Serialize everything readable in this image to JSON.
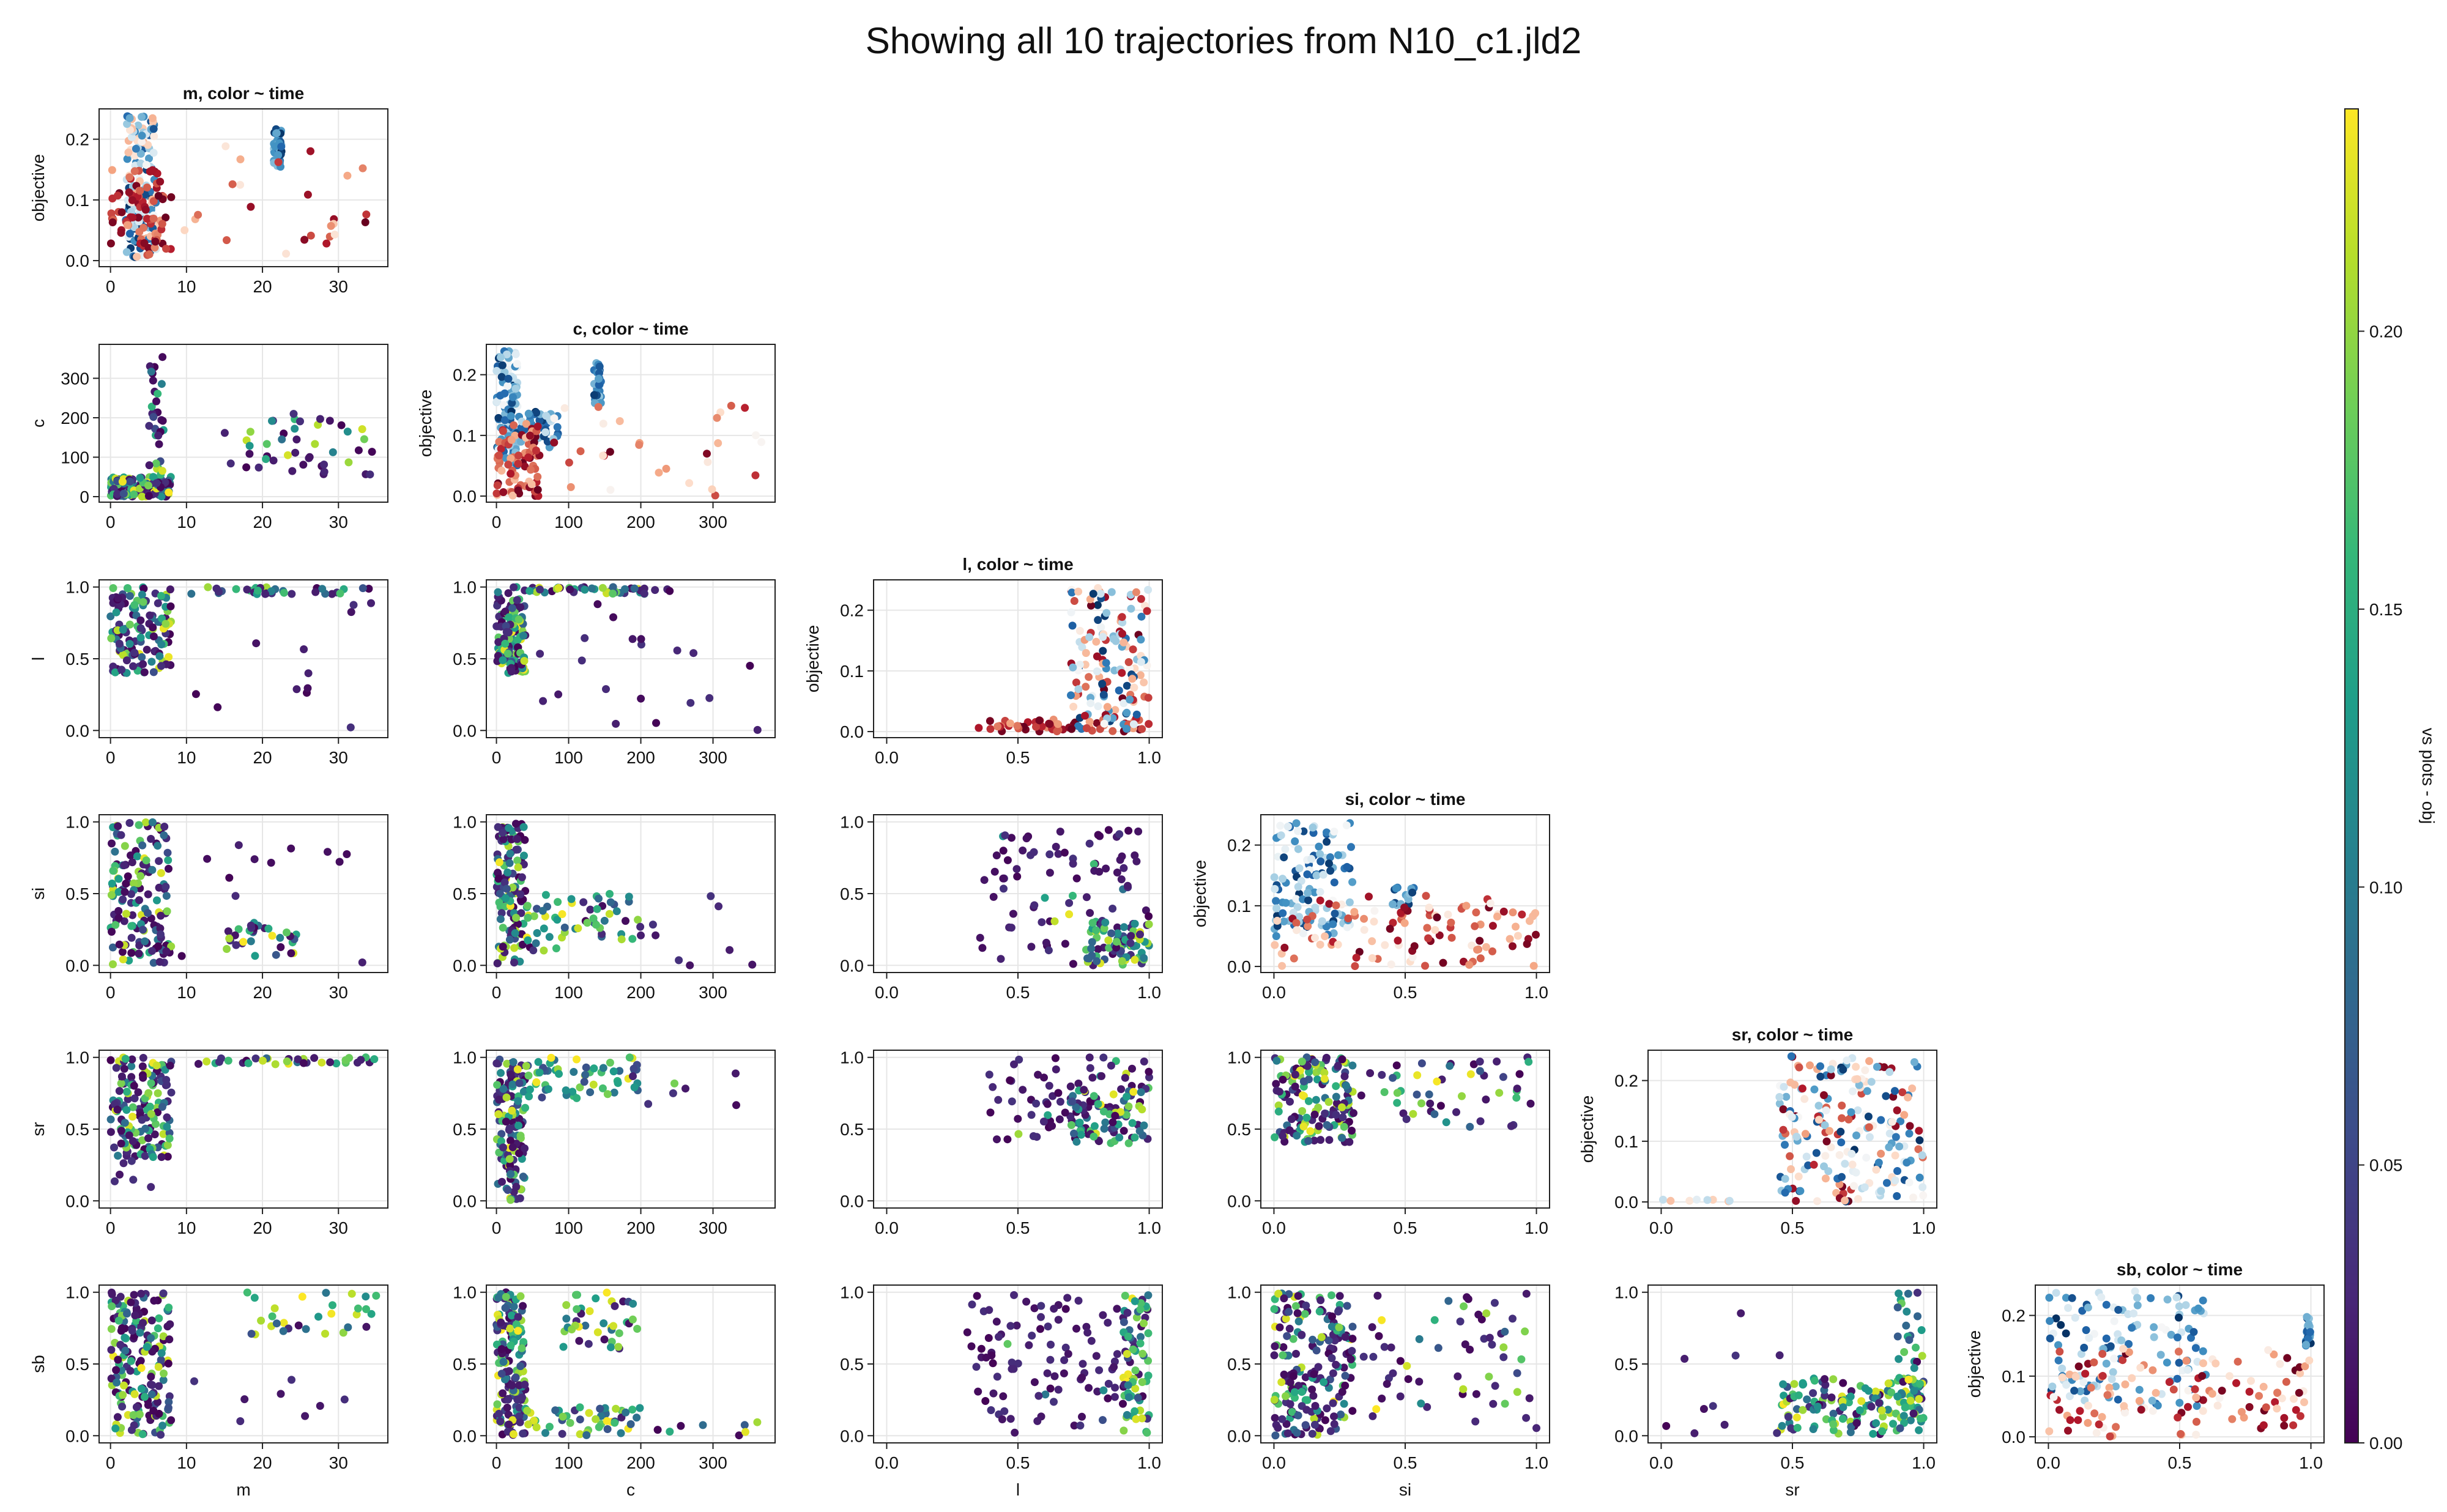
{
  "title": "Showing all 10 trajectories from N10_c1.jld2",
  "colorbar": {
    "label": "vs plots - obj",
    "colormap": "viridis",
    "range": [
      0.0,
      0.24
    ],
    "ticks": [
      "0.00",
      "0.05",
      "0.10",
      "0.15",
      "0.20"
    ],
    "tick_values": [
      0.0,
      0.05,
      0.1,
      0.15,
      0.2
    ]
  },
  "time_colormap": "RdBu (red = early, blue = late)",
  "variables": [
    "m",
    "c",
    "l",
    "si",
    "sr",
    "sb"
  ],
  "axes": {
    "m": {
      "range": [
        -1.5,
        36.5
      ],
      "ticks": [
        0,
        10,
        20,
        30
      ],
      "tick_labels": [
        "0",
        "10",
        "20",
        "30"
      ]
    },
    "c": {
      "range": [
        -14,
        386
      ],
      "ticks": [
        0,
        100,
        200,
        300
      ],
      "tick_labels": [
        "0",
        "100",
        "200",
        "300"
      ]
    },
    "l": {
      "range": [
        -0.05,
        1.05
      ],
      "ticks": [
        0,
        0.5,
        1
      ],
      "tick_labels": [
        "0.0",
        "0.5",
        "1.0"
      ]
    },
    "si": {
      "range": [
        -0.05,
        1.05
      ],
      "ticks": [
        0,
        0.5,
        1
      ],
      "tick_labels": [
        "0.0",
        "0.5",
        "1.0"
      ]
    },
    "sr": {
      "range": [
        -0.05,
        1.05
      ],
      "ticks": [
        0,
        0.5,
        1
      ],
      "tick_labels": [
        "0.0",
        "0.5",
        "1.0"
      ]
    },
    "sb": {
      "range": [
        -0.05,
        1.05
      ],
      "ticks": [
        0,
        0.5,
        1
      ],
      "tick_labels": [
        "0.0",
        "0.5",
        "1.0"
      ]
    },
    "c_y": {
      "range": [
        -14,
        386
      ],
      "ticks": [
        0,
        100,
        200,
        300
      ],
      "tick_labels": [
        "0",
        "100",
        "200",
        "300"
      ]
    },
    "objective": {
      "range": [
        -0.01,
        0.25
      ],
      "ticks": [
        0,
        0.1,
        0.2
      ],
      "tick_labels": [
        "0.0",
        "0.1",
        "0.2"
      ]
    }
  },
  "diagonal_titles": [
    "m, color ~ time",
    "c, color ~ time",
    "l, color ~ time",
    "si, color ~ time",
    "sr, color ~ time",
    "sb, color ~ time"
  ],
  "objective_label": "objective",
  "chart_data": [
    {
      "type": "scatter",
      "title": "m, color ~ time",
      "xlabel": "",
      "ylabel": "objective",
      "x_var": "m",
      "y_var": "objective",
      "color": "time",
      "clusters": [
        {
          "x": [
            2,
            6
          ],
          "y": [
            0.0,
            0.24
          ],
          "n": 150,
          "t": [
            0.3,
            1.0
          ]
        },
        {
          "x": [
            0,
            8
          ],
          "y": [
            0.0,
            0.15
          ],
          "n": 80,
          "t": [
            0.0,
            0.3
          ]
        },
        {
          "x": [
            21.5,
            22.5
          ],
          "y": [
            0.15,
            0.22
          ],
          "n": 40,
          "t": [
            0.7,
            1.0
          ]
        },
        {
          "x": [
            8,
            34
          ],
          "y": [
            0.0,
            0.19
          ],
          "n": 25,
          "t": [
            0.0,
            0.45
          ]
        }
      ]
    },
    {
      "type": "scatter",
      "title": "",
      "xlabel": "",
      "ylabel": "c",
      "x_var": "m",
      "y_var": "c",
      "color": "objective",
      "clusters": [
        {
          "x": [
            0,
            8
          ],
          "y": [
            0,
            50
          ],
          "n": 160
        },
        {
          "x": [
            5,
            7
          ],
          "y": [
            0,
            375
          ],
          "n": 35,
          "high": 0.5
        },
        {
          "x": [
            15,
            35
          ],
          "y": [
            50,
            215
          ],
          "n": 45,
          "high": 0.35
        }
      ]
    },
    {
      "type": "scatter",
      "title": "c, color ~ time",
      "xlabel": "",
      "ylabel": "objective",
      "x_var": "c",
      "y_var": "objective",
      "color": "time",
      "clusters": [
        {
          "x": [
            0,
            30
          ],
          "y": [
            0.05,
            0.24
          ],
          "n": 110,
          "t": [
            0.5,
            1.0
          ]
        },
        {
          "x": [
            30,
            90
          ],
          "y": [
            0.08,
            0.14
          ],
          "n": 40,
          "t": [
            0.6,
            1.0
          ]
        },
        {
          "x": [
            135,
            145
          ],
          "y": [
            0.15,
            0.22
          ],
          "n": 30,
          "t": [
            0.7,
            1.0
          ]
        },
        {
          "x": [
            0,
            60
          ],
          "y": [
            0.0,
            0.12
          ],
          "n": 80,
          "t": [
            0.0,
            0.35
          ]
        },
        {
          "x": [
            60,
            375
          ],
          "y": [
            0.0,
            0.15
          ],
          "n": 30,
          "t": [
            0.0,
            0.5
          ]
        }
      ]
    },
    {
      "type": "scatter",
      "title": "",
      "xlabel": "",
      "ylabel": "l",
      "x_var": "m",
      "y_var": "l",
      "color": "objective",
      "clusters": [
        {
          "x": [
            0,
            8
          ],
          "y": [
            0.4,
            1.0
          ],
          "n": 130
        },
        {
          "x": [
            10,
            35
          ],
          "y": [
            0.95,
            1.0
          ],
          "n": 35,
          "high": 0.5
        },
        {
          "x": [
            8,
            35
          ],
          "y": [
            0.0,
            0.9
          ],
          "n": 12,
          "high": 0.05
        }
      ]
    },
    {
      "type": "scatter",
      "title": "",
      "xlabel": "",
      "ylabel": "",
      "x_var": "c",
      "y_var": "l",
      "color": "objective",
      "clusters": [
        {
          "x": [
            0,
            40
          ],
          "y": [
            0.4,
            1.0
          ],
          "n": 130
        },
        {
          "x": [
            40,
            240
          ],
          "y": [
            0.95,
            1.0
          ],
          "n": 45,
          "high": 0.6
        },
        {
          "x": [
            40,
            375
          ],
          "y": [
            0.0,
            0.9
          ],
          "n": 20,
          "high": 0.05
        }
      ]
    },
    {
      "type": "scatter",
      "title": "l, color ~ time",
      "xlabel": "",
      "ylabel": "objective",
      "x_var": "l",
      "y_var": "objective",
      "color": "time",
      "clusters": [
        {
          "x": [
            0.35,
            1.0
          ],
          "y": [
            0.0,
            0.02
          ],
          "n": 60,
          "t": [
            0.0,
            0.3
          ]
        },
        {
          "x": [
            0.7,
            1.0
          ],
          "y": [
            0.0,
            0.24
          ],
          "n": 150,
          "t": [
            0.0,
            1.0
          ]
        }
      ]
    },
    {
      "type": "scatter",
      "title": "",
      "xlabel": "",
      "ylabel": "si",
      "x_var": "m",
      "y_var": "si",
      "color": "objective",
      "clusters": [
        {
          "x": [
            0,
            8
          ],
          "y": [
            0.0,
            1.0
          ],
          "n": 150
        },
        {
          "x": [
            15,
            25
          ],
          "y": [
            0.05,
            0.3
          ],
          "n": 30,
          "high": 0.8
        },
        {
          "x": [
            8,
            35
          ],
          "y": [
            0.0,
            0.85
          ],
          "n": 15,
          "high": 0.05
        }
      ]
    },
    {
      "type": "scatter",
      "title": "",
      "xlabel": "",
      "ylabel": "",
      "x_var": "c",
      "y_var": "si",
      "color": "objective",
      "clusters": [
        {
          "x": [
            0,
            40
          ],
          "y": [
            0.0,
            1.0
          ],
          "n": 130
        },
        {
          "x": [
            40,
            200
          ],
          "y": [
            0.1,
            0.5
          ],
          "n": 60,
          "high": 0.8
        },
        {
          "x": [
            200,
            375
          ],
          "y": [
            0.0,
            0.5
          ],
          "n": 8,
          "high": 0.3
        }
      ]
    },
    {
      "type": "scatter",
      "title": "",
      "xlabel": "",
      "ylabel": "",
      "x_var": "l",
      "y_var": "si",
      "color": "objective",
      "clusters": [
        {
          "x": [
            0.35,
            1.0
          ],
          "y": [
            0.0,
            0.95
          ],
          "n": 90,
          "high": 0.1
        },
        {
          "x": [
            0.75,
            1.0
          ],
          "y": [
            0.0,
            0.3
          ],
          "n": 70,
          "high": 0.8
        }
      ]
    },
    {
      "type": "scatter",
      "title": "si, color ~ time",
      "xlabel": "",
      "ylabel": "objective",
      "x_var": "si",
      "y_var": "objective",
      "color": "time",
      "clusters": [
        {
          "x": [
            0.0,
            0.3
          ],
          "y": [
            0.05,
            0.24
          ],
          "n": 120,
          "t": [
            0.5,
            1.0
          ]
        },
        {
          "x": [
            0.45,
            0.55
          ],
          "y": [
            0.1,
            0.13
          ],
          "n": 15,
          "t": [
            0.7,
            1.0
          ]
        },
        {
          "x": [
            0.0,
            1.0
          ],
          "y": [
            0.0,
            0.12
          ],
          "n": 110,
          "t": [
            0.0,
            0.5
          ]
        }
      ]
    },
    {
      "type": "scatter",
      "title": "",
      "xlabel": "",
      "ylabel": "sr",
      "x_var": "m",
      "y_var": "sr",
      "color": "objective",
      "clusters": [
        {
          "x": [
            0,
            8
          ],
          "y": [
            0.3,
            1.0
          ],
          "n": 150
        },
        {
          "x": [
            10,
            35
          ],
          "y": [
            0.95,
            1.0
          ],
          "n": 35,
          "high": 0.6
        },
        {
          "x": [
            0,
            8
          ],
          "y": [
            0.0,
            0.3
          ],
          "n": 6,
          "high": 0.05
        }
      ]
    },
    {
      "type": "scatter",
      "title": "",
      "xlabel": "",
      "ylabel": "",
      "x_var": "c",
      "y_var": "sr",
      "color": "objective",
      "clusters": [
        {
          "x": [
            0,
            40
          ],
          "y": [
            0.0,
            1.0
          ],
          "n": 130
        },
        {
          "x": [
            40,
            200
          ],
          "y": [
            0.7,
            1.0
          ],
          "n": 60,
          "high": 0.9
        },
        {
          "x": [
            200,
            375
          ],
          "y": [
            0.6,
            0.9
          ],
          "n": 6,
          "high": 0.3
        }
      ]
    },
    {
      "type": "scatter",
      "title": "",
      "xlabel": "",
      "ylabel": "",
      "x_var": "l",
      "y_var": "sr",
      "color": "objective",
      "clusters": [
        {
          "x": [
            0.35,
            1.0
          ],
          "y": [
            0.4,
            1.0
          ],
          "n": 80,
          "high": 0.1
        },
        {
          "x": [
            0.7,
            1.0
          ],
          "y": [
            0.4,
            0.8
          ],
          "n": 70,
          "high": 0.7
        }
      ]
    },
    {
      "type": "scatter",
      "title": "",
      "xlabel": "",
      "ylabel": "",
      "x_var": "si",
      "y_var": "sr",
      "color": "objective",
      "clusters": [
        {
          "x": [
            0.0,
            0.3
          ],
          "y": [
            0.4,
            1.0
          ],
          "n": 150
        },
        {
          "x": [
            0.3,
            1.0
          ],
          "y": [
            0.5,
            1.0
          ],
          "n": 50,
          "high": 0.5
        }
      ]
    },
    {
      "type": "scatter",
      "title": "sr, color ~ time",
      "xlabel": "",
      "ylabel": "objective",
      "x_var": "sr",
      "y_var": "objective",
      "color": "time",
      "clusters": [
        {
          "x": [
            0.45,
            1.0
          ],
          "y": [
            0.0,
            0.24
          ],
          "n": 200,
          "t": [
            0.0,
            1.0
          ]
        },
        {
          "x": [
            0.0,
            0.35
          ],
          "y": [
            0.0,
            0.005
          ],
          "n": 8,
          "t": [
            0.3,
            0.7
          ]
        }
      ]
    },
    {
      "type": "scatter",
      "title": "",
      "xlabel": "m",
      "ylabel": "sb",
      "x_var": "m",
      "y_var": "sb",
      "color": "objective",
      "clusters": [
        {
          "x": [
            0,
            8
          ],
          "y": [
            0.0,
            1.0
          ],
          "n": 180
        },
        {
          "x": [
            18,
            35
          ],
          "y": [
            0.7,
            1.0
          ],
          "n": 30,
          "high": 0.8
        },
        {
          "x": [
            8,
            35
          ],
          "y": [
            0.0,
            0.5
          ],
          "n": 8,
          "high": 0.3
        }
      ]
    },
    {
      "type": "scatter",
      "title": "",
      "xlabel": "c",
      "ylabel": "",
      "x_var": "c",
      "y_var": "sb",
      "color": "objective",
      "clusters": [
        {
          "x": [
            0,
            40
          ],
          "y": [
            0.0,
            1.0
          ],
          "n": 150
        },
        {
          "x": [
            40,
            200
          ],
          "y": [
            0.0,
            0.2
          ],
          "n": 50,
          "high": 0.9
        },
        {
          "x": [
            90,
            200
          ],
          "y": [
            0.6,
            1.0
          ],
          "n": 40,
          "high": 0.8
        },
        {
          "x": [
            200,
            375
          ],
          "y": [
            0.0,
            0.1
          ],
          "n": 8,
          "high": 0.3
        }
      ]
    },
    {
      "type": "scatter",
      "title": "",
      "xlabel": "l",
      "ylabel": "",
      "x_var": "l",
      "y_var": "sb",
      "color": "objective",
      "clusters": [
        {
          "x": [
            0.3,
            1.0
          ],
          "y": [
            0.0,
            1.0
          ],
          "n": 110,
          "high": 0.1
        },
        {
          "x": [
            0.9,
            1.0
          ],
          "y": [
            0.0,
            1.0
          ],
          "n": 60,
          "high": 0.9
        }
      ]
    },
    {
      "type": "scatter",
      "title": "",
      "xlabel": "si",
      "ylabel": "",
      "x_var": "si",
      "y_var": "sb",
      "color": "objective",
      "clusters": [
        {
          "x": [
            0.0,
            0.3
          ],
          "y": [
            0.0,
            1.0
          ],
          "n": 190
        },
        {
          "x": [
            0.3,
            1.0
          ],
          "y": [
            0.0,
            1.0
          ],
          "n": 60,
          "high": 0.3
        }
      ]
    },
    {
      "type": "scatter",
      "title": "",
      "xlabel": "sr",
      "ylabel": "",
      "x_var": "sr",
      "y_var": "sb",
      "color": "objective",
      "clusters": [
        {
          "x": [
            0.45,
            1.0
          ],
          "y": [
            0.0,
            0.4
          ],
          "n": 140,
          "high": 0.8
        },
        {
          "x": [
            0.9,
            1.0
          ],
          "y": [
            0.0,
            1.0
          ],
          "n": 50,
          "high": 0.9
        },
        {
          "x": [
            0.0,
            0.5
          ],
          "y": [
            0.0,
            0.9
          ],
          "n": 10,
          "high": 0.05
        }
      ]
    },
    {
      "type": "scatter",
      "title": "sb, color ~ time",
      "xlabel": "",
      "ylabel": "objective",
      "x_var": "sb",
      "y_var": "objective",
      "color": "time",
      "clusters": [
        {
          "x": [
            0.0,
            0.6
          ],
          "y": [
            0.05,
            0.24
          ],
          "n": 120,
          "t": [
            0.5,
            1.0
          ]
        },
        {
          "x": [
            0.98,
            1.0
          ],
          "y": [
            0.15,
            0.2
          ],
          "n": 25,
          "t": [
            0.7,
            1.0
          ]
        },
        {
          "x": [
            0.0,
            1.0
          ],
          "y": [
            0.0,
            0.15
          ],
          "n": 120,
          "t": [
            0.0,
            0.5
          ]
        }
      ]
    }
  ]
}
